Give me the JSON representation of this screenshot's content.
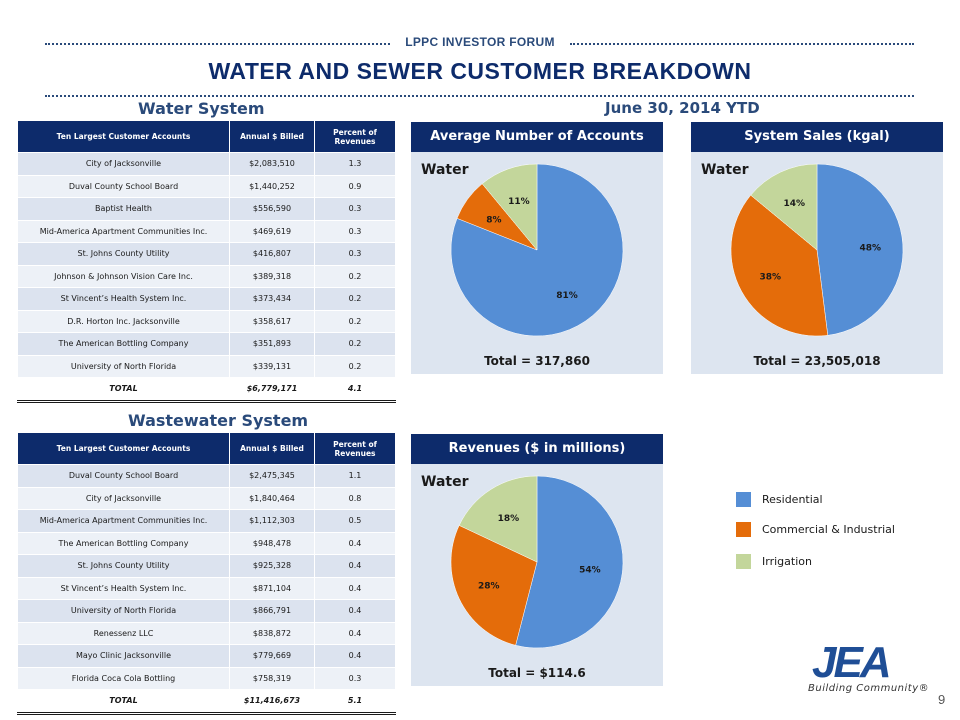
{
  "header": {
    "forum": "LPPC INVESTOR FORUM",
    "title": "WATER AND SEWER CUSTOMER BREAKDOWN",
    "date_label": "June 30, 2014 YTD"
  },
  "water_system": {
    "label": "Water System",
    "columns": [
      "Ten Largest Customer Accounts",
      "Annual $ Billed",
      "Percent of Revenues"
    ],
    "rows": [
      [
        "City of Jacksonville",
        "$2,083,510",
        "1.3"
      ],
      [
        "Duval County School Board",
        "$1,440,252",
        "0.9"
      ],
      [
        "Baptist Health",
        "$556,590",
        "0.3"
      ],
      [
        "Mid-America Apartment Communities Inc.",
        "$469,619",
        "0.3"
      ],
      [
        "St. Johns County Utility",
        "$416,807",
        "0.3"
      ],
      [
        "Johnson & Johnson Vision Care Inc.",
        "$389,318",
        "0.2"
      ],
      [
        "St Vincent’s Health System Inc.",
        "$373,434",
        "0.2"
      ],
      [
        "D.R. Horton Inc. Jacksonville",
        "$358,617",
        "0.2"
      ],
      [
        "The American Bottling Company",
        "$351,893",
        "0.2"
      ],
      [
        "University of North Florida",
        "$339,131",
        "0.2"
      ]
    ],
    "total": [
      "TOTAL",
      "$6,779,171",
      "4.1"
    ]
  },
  "wastewater_system": {
    "label": "Wastewater System",
    "columns": [
      "Ten Largest Customer Accounts",
      "Annual $ Billed",
      "Percent of Revenues"
    ],
    "rows": [
      [
        "Duval County School Board",
        "$2,475,345",
        "1.1"
      ],
      [
        "City of Jacksonville",
        "$1,840,464",
        "0.8"
      ],
      [
        "Mid-America Apartment Communities Inc.",
        "$1,112,303",
        "0.5"
      ],
      [
        "The American Bottling Company",
        "$948,478",
        "0.4"
      ],
      [
        "St. Johns County Utility",
        "$925,328",
        "0.4"
      ],
      [
        "St Vincent’s Health System Inc.",
        "$871,104",
        "0.4"
      ],
      [
        "University of North Florida",
        "$866,791",
        "0.4"
      ],
      [
        "Renessenz LLC",
        "$838,872",
        "0.4"
      ],
      [
        "Mayo Clinic Jacksonville",
        "$779,669",
        "0.4"
      ],
      [
        "Florida Coca Cola Bottling",
        "$758,319",
        "0.3"
      ]
    ],
    "total": [
      "TOTAL",
      "$11,416,673",
      "5.1"
    ]
  },
  "legend": {
    "items": [
      {
        "label": "Residential",
        "color": "#558ed5"
      },
      {
        "label": "Commercial & Industrial",
        "color": "#e46c0a"
      },
      {
        "label": "Irrigation",
        "color": "#c3d69b"
      }
    ]
  },
  "chart_data": [
    {
      "type": "pie",
      "title": "Average Number of Accounts",
      "subtitle": "Water",
      "total_label": "Total = 317,860",
      "categories": [
        "Residential",
        "Commercial & Industrial",
        "Irrigation"
      ],
      "values": [
        81,
        8,
        11
      ],
      "labels": [
        "81%",
        "8%",
        "11%"
      ],
      "colors": [
        "#558ed5",
        "#e46c0a",
        "#c3d69b"
      ]
    },
    {
      "type": "pie",
      "title": "System Sales (kgal)",
      "subtitle": "Water",
      "total_label": "Total = 23,505,018",
      "categories": [
        "Residential",
        "Commercial & Industrial",
        "Irrigation"
      ],
      "values": [
        48,
        38,
        14
      ],
      "labels": [
        "48%",
        "38%",
        "14%"
      ],
      "colors": [
        "#558ed5",
        "#e46c0a",
        "#c3d69b"
      ]
    },
    {
      "type": "pie",
      "title": "Revenues ($ in millions)",
      "subtitle": "Water",
      "total_label": "Total = $114.6",
      "categories": [
        "Residential",
        "Commercial & Industrial",
        "Irrigation"
      ],
      "values": [
        54,
        28,
        18
      ],
      "labels": [
        "54%",
        "28%",
        "18%"
      ],
      "colors": [
        "#558ed5",
        "#e46c0a",
        "#c3d69b"
      ]
    }
  ],
  "logo": {
    "text": "JEA",
    "tagline": "Building Community®"
  },
  "page_number": "9"
}
